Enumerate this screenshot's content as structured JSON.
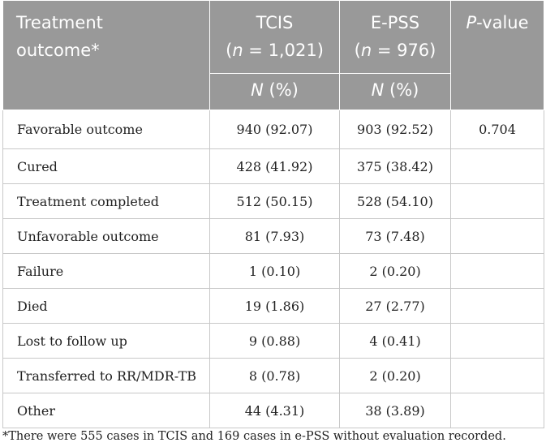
{
  "table": {
    "headers": {
      "outcome_line1": "Treatment",
      "outcome_line2": "outcome*",
      "tcis_label": "TCIS",
      "tcis_n_prefix": "(",
      "tcis_n_var": "n",
      "tcis_n_value": " = 1,021)",
      "epss_label": "E-PSS",
      "epss_n_prefix": "(",
      "epss_n_var": "n",
      "epss_n_value": " = 976)",
      "pvalue_italic": "P",
      "pvalue_rest": "-value",
      "tcis_unit_var": "N",
      "tcis_unit_rest": " (%)",
      "epss_unit_var": "N",
      "epss_unit_rest": " (%)"
    },
    "rows": [
      {
        "outcome": "Favorable outcome",
        "tcis": "940 (92.07)",
        "epss": "903 (92.52)",
        "p": "0.704"
      },
      {
        "outcome": "Cured",
        "tcis": "428 (41.92)",
        "epss": "375 (38.42)",
        "p": ""
      },
      {
        "outcome": "Treatment completed",
        "tcis": "512 (50.15)",
        "epss": "528 (54.10)",
        "p": ""
      },
      {
        "outcome": "Unfavorable outcome",
        "tcis": "81 (7.93)",
        "epss": "73 (7.48)",
        "p": ""
      },
      {
        "outcome": "Failure",
        "tcis": "1 (0.10)",
        "epss": "2 (0.20)",
        "p": ""
      },
      {
        "outcome": "Died",
        "tcis": "19 (1.86)",
        "epss": "27 (2.77)",
        "p": ""
      },
      {
        "outcome": "Lost to follow up",
        "tcis": "9 (0.88)",
        "epss": "4 (0.41)",
        "p": ""
      },
      {
        "outcome": "Transferred to RR/MDR-TB",
        "tcis": "8 (0.78)",
        "epss": "2 (0.20)",
        "p": ""
      },
      {
        "outcome": "Other",
        "tcis": "44 (4.31)",
        "epss": "38 (3.89)",
        "p": ""
      }
    ]
  },
  "footnote": "*There were 555 cases in TCIS and 169 cases in e-PSS without evaluation recorded."
}
